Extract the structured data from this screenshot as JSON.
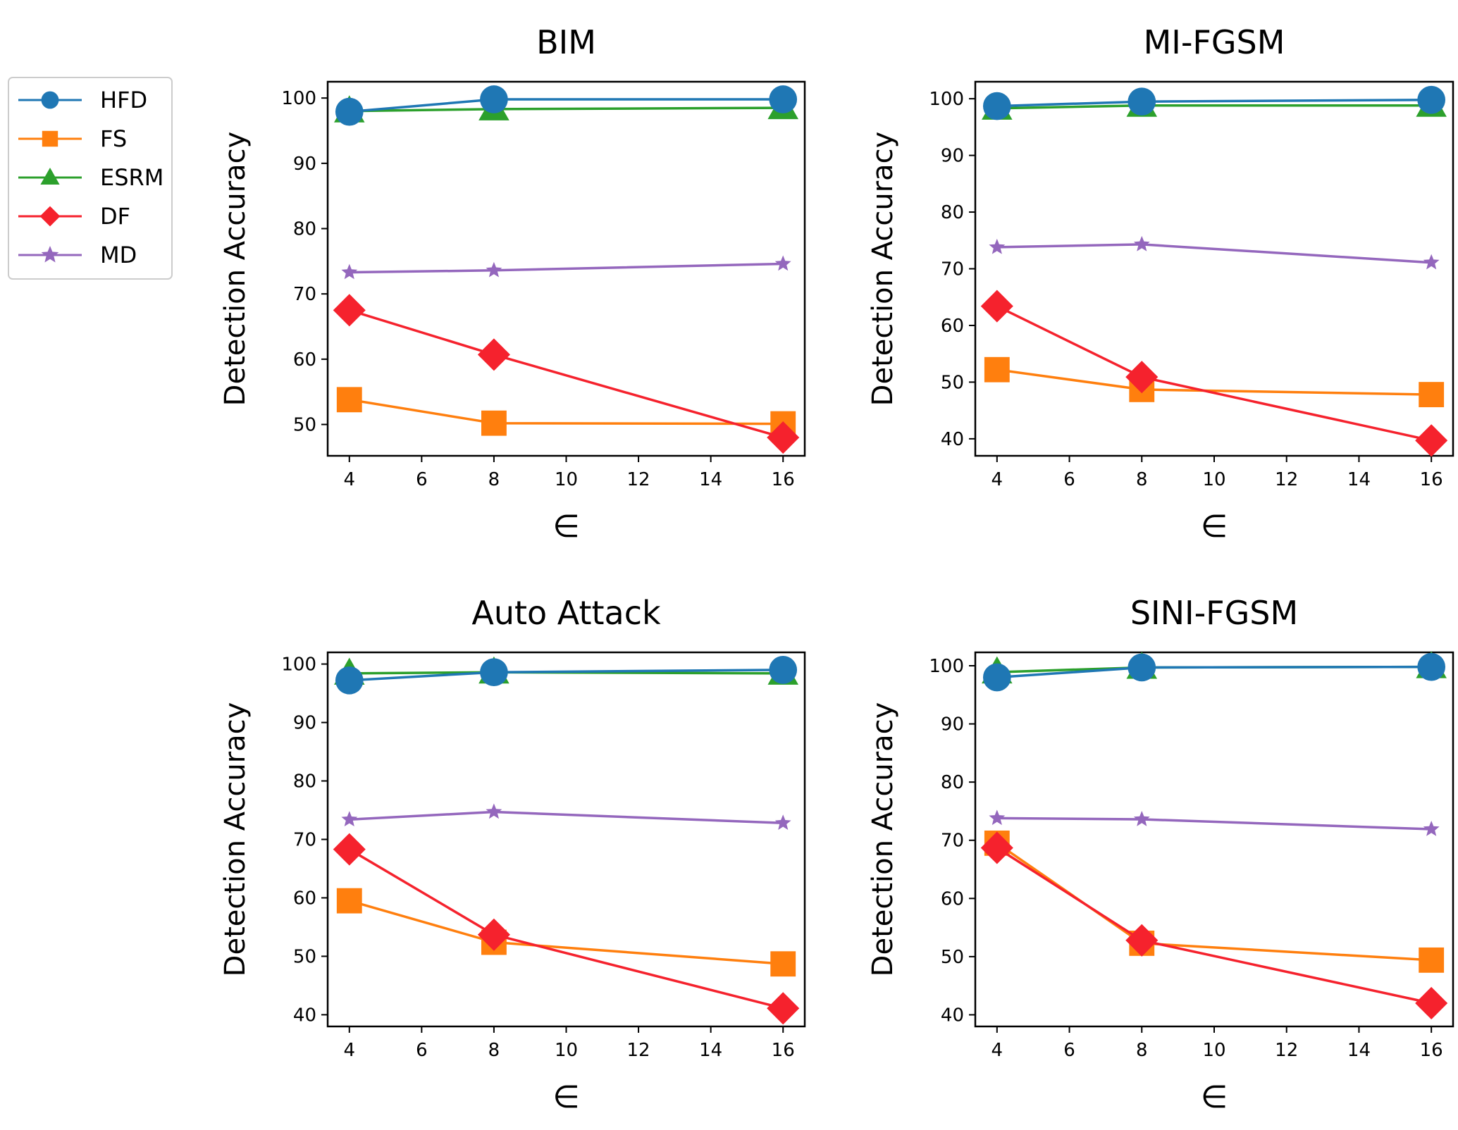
{
  "colors": {
    "HFD": "#1f77b4",
    "FS": "#ff7f0e",
    "ESRM": "#2ca02c",
    "DF": "#f5222d",
    "MD": "#9467bd"
  },
  "legend": {
    "entries": [
      {
        "name": "HFD",
        "marker": "circle"
      },
      {
        "name": "FS",
        "marker": "square"
      },
      {
        "name": "ESRM",
        "marker": "triangle"
      },
      {
        "name": "DF",
        "marker": "diamond"
      },
      {
        "name": "MD",
        "marker": "star"
      }
    ],
    "placement": "left, outside plots"
  },
  "chart_data": [
    {
      "type": "line",
      "title": "BIM",
      "xlabel": "∈",
      "ylabel": "Detection Accuracy",
      "x": [
        4,
        8,
        16
      ],
      "xticks": [
        4,
        6,
        8,
        10,
        12,
        14,
        16
      ],
      "yticks": [
        50,
        60,
        70,
        80,
        90,
        100
      ],
      "xlim": [
        3.4,
        16.6
      ],
      "ylim": [
        45.2,
        102.5
      ],
      "series": [
        {
          "name": "HFD",
          "values": [
            97.9,
            99.8,
            99.8
          ]
        },
        {
          "name": "FS",
          "values": [
            53.8,
            50.2,
            50.1
          ]
        },
        {
          "name": "ESRM",
          "values": [
            98.0,
            98.3,
            98.5
          ]
        },
        {
          "name": "DF",
          "values": [
            67.5,
            60.7,
            48.0
          ]
        },
        {
          "name": "MD",
          "values": [
            73.3,
            73.6,
            74.6
          ]
        }
      ]
    },
    {
      "type": "line",
      "title": "MI-FGSM",
      "xlabel": "∈",
      "ylabel": "Detection Accuracy",
      "x": [
        4,
        8,
        16
      ],
      "xticks": [
        4,
        6,
        8,
        10,
        12,
        14,
        16
      ],
      "yticks": [
        40,
        50,
        60,
        70,
        80,
        90,
        100
      ],
      "xlim": [
        3.4,
        16.6
      ],
      "ylim": [
        37.0,
        103.0
      ],
      "series": [
        {
          "name": "HFD",
          "values": [
            98.7,
            99.5,
            99.8
          ]
        },
        {
          "name": "FS",
          "values": [
            52.2,
            48.7,
            47.8
          ]
        },
        {
          "name": "ESRM",
          "values": [
            98.3,
            98.8,
            98.8
          ]
        },
        {
          "name": "DF",
          "values": [
            63.4,
            50.9,
            39.7
          ]
        },
        {
          "name": "MD",
          "values": [
            73.8,
            74.3,
            71.1
          ]
        }
      ]
    },
    {
      "type": "line",
      "title": "Auto Attack",
      "xlabel": "∈",
      "ylabel": "Detection Accuracy",
      "x": [
        4,
        8,
        16
      ],
      "xticks": [
        4,
        6,
        8,
        10,
        12,
        14,
        16
      ],
      "yticks": [
        40,
        50,
        60,
        70,
        80,
        90,
        100
      ],
      "xlim": [
        3.4,
        16.6
      ],
      "ylim": [
        38.0,
        102.0
      ],
      "series": [
        {
          "name": "HFD",
          "values": [
            97.2,
            98.6,
            99.0
          ]
        },
        {
          "name": "FS",
          "values": [
            59.5,
            52.4,
            48.7
          ]
        },
        {
          "name": "ESRM",
          "values": [
            98.4,
            98.6,
            98.4
          ]
        },
        {
          "name": "DF",
          "values": [
            68.3,
            53.7,
            41.1
          ]
        },
        {
          "name": "MD",
          "values": [
            73.4,
            74.7,
            72.8
          ]
        }
      ]
    },
    {
      "type": "line",
      "title": "SINI-FGSM",
      "xlabel": "∈",
      "ylabel": "Detection Accuracy",
      "x": [
        4,
        8,
        16
      ],
      "xticks": [
        4,
        6,
        8,
        10,
        12,
        14,
        16
      ],
      "yticks": [
        40,
        50,
        60,
        70,
        80,
        90,
        100
      ],
      "xlim": [
        3.4,
        16.6
      ],
      "ylim": [
        38.0,
        102.3
      ],
      "series": [
        {
          "name": "HFD",
          "values": [
            98.0,
            99.7,
            99.8
          ]
        },
        {
          "name": "FS",
          "values": [
            69.5,
            52.3,
            49.4
          ]
        },
        {
          "name": "ESRM",
          "values": [
            98.9,
            99.7,
            99.8
          ]
        },
        {
          "name": "DF",
          "values": [
            68.7,
            52.8,
            42.0
          ]
        },
        {
          "name": "MD",
          "values": [
            73.8,
            73.6,
            71.9
          ]
        }
      ]
    }
  ]
}
